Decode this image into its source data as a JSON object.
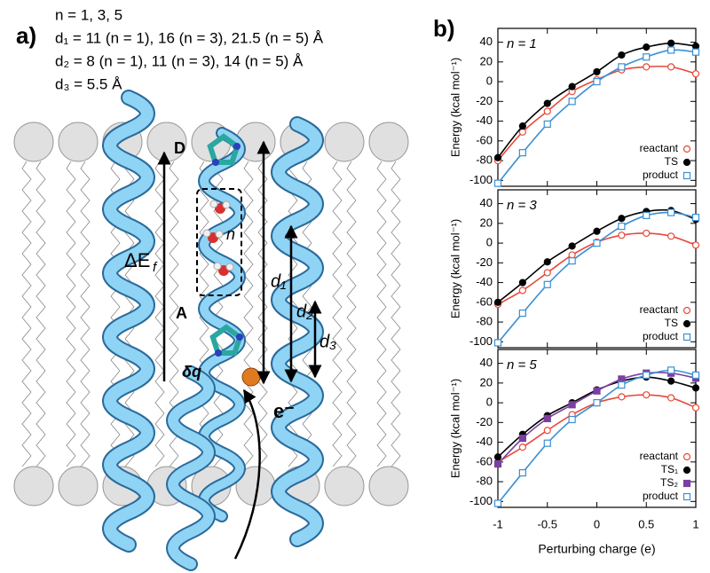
{
  "figure_a": {
    "label": "a)",
    "lines": [
      "n = 1, 3, 5",
      "d₁ = 11 (n = 1), 16 (n = 3), 21.5 (n = 5) Å",
      "d₂ = 8 (n = 1), 11 (n = 3), 14 (n = 5) Å",
      "d₃ = 5.5 Å"
    ],
    "labels": {
      "donor": "D",
      "acceptor": "A",
      "n": "n",
      "delta_e": "ΔE",
      "delta_e_sub": "f",
      "dq": "δq",
      "electron": "e⁻",
      "d1": "d₁",
      "d2": "d₂",
      "d3": "d₃"
    }
  },
  "figure_b_label": "b)",
  "chart_data": [
    {
      "type": "line",
      "annotation": "n = 1",
      "ylabel": "Energy (kcal mol⁻¹)",
      "x": [
        -1,
        -0.75,
        -0.5,
        -0.25,
        0,
        0.25,
        0.5,
        0.75,
        1
      ],
      "xlim": [
        -1,
        1
      ],
      "xticks": [
        -1,
        -0.5,
        0,
        0.5,
        1
      ],
      "ylim": [
        -106,
        54
      ],
      "yticks": [
        -100,
        -80,
        -60,
        -40,
        -20,
        0,
        20,
        40
      ],
      "legend": "lower right",
      "series": [
        {
          "name": "reactant",
          "color": "#e8493a",
          "marker": "circle-open",
          "values": [
            -80,
            -51,
            -30,
            -10,
            2,
            12,
            15,
            15,
            8
          ]
        },
        {
          "name": "TS",
          "color": "#000000",
          "marker": "circle",
          "values": [
            -77,
            -45,
            -22,
            -5,
            10,
            27,
            35,
            39,
            36
          ]
        },
        {
          "name": "product",
          "color": "#3a8fd4",
          "marker": "square-open",
          "values": [
            -103,
            -72,
            -43,
            -20,
            0,
            15,
            25,
            32,
            30
          ]
        }
      ]
    },
    {
      "type": "line",
      "annotation": "n = 3",
      "ylabel": "Energy (kcal mol⁻¹)",
      "x": [
        -1,
        -0.75,
        -0.5,
        -0.25,
        0,
        0.25,
        0.5,
        0.75,
        1
      ],
      "xlim": [
        -1,
        1
      ],
      "xticks": [
        -1,
        -0.5,
        0,
        0.5,
        1
      ],
      "ylim": [
        -106,
        54
      ],
      "yticks": [
        -100,
        -80,
        -60,
        -40,
        -20,
        0,
        20,
        40
      ],
      "legend": "lower right",
      "series": [
        {
          "name": "reactant",
          "color": "#e8493a",
          "marker": "circle-open",
          "values": [
            -62,
            -48,
            -30,
            -12,
            1,
            8,
            10,
            7,
            -2
          ]
        },
        {
          "name": "TS",
          "color": "#000000",
          "marker": "circle",
          "values": [
            -60,
            -40,
            -19,
            -3,
            12,
            25,
            32,
            33,
            24
          ]
        },
        {
          "name": "product",
          "color": "#3a8fd4",
          "marker": "square-open",
          "values": [
            -101,
            -71,
            -42,
            -18,
            0,
            17,
            28,
            31,
            26
          ]
        }
      ]
    },
    {
      "type": "line",
      "annotation": "n = 5",
      "ylabel": "Energy (kcal mol⁻¹)",
      "xlabel": "Perturbing charge (e)",
      "x": [
        -1,
        -0.75,
        -0.5,
        -0.25,
        0,
        0.25,
        0.5,
        0.75,
        1
      ],
      "xlim": [
        -1,
        1
      ],
      "xticks": [
        -1,
        -0.5,
        0,
        0.5,
        1
      ],
      "ylim": [
        -106,
        54
      ],
      "yticks": [
        -100,
        -80,
        -60,
        -40,
        -20,
        0,
        20,
        40
      ],
      "legend": "lower right",
      "series": [
        {
          "name": "reactant",
          "color": "#e8493a",
          "marker": "circle-open",
          "values": [
            -60,
            -45,
            -28,
            -12,
            0,
            6,
            8,
            5,
            -5
          ]
        },
        {
          "name": "TS₁",
          "color": "#000000",
          "marker": "circle",
          "values": [
            -55,
            -32,
            -13,
            0,
            13,
            22,
            26,
            22,
            15
          ]
        },
        {
          "name": "TS₂",
          "color": "#7b3fa0",
          "marker": "square",
          "values": [
            -62,
            -36,
            -16,
            -2,
            12,
            24,
            30,
            30,
            25
          ]
        },
        {
          "name": "product",
          "color": "#3a8fd4",
          "marker": "square-open",
          "values": [
            -102,
            -71,
            -41,
            -17,
            0,
            18,
            28,
            33,
            28
          ]
        }
      ]
    }
  ]
}
